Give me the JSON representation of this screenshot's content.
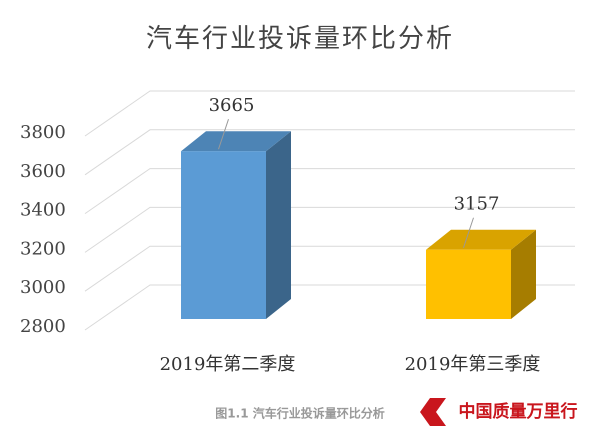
{
  "chart_data": {
    "type": "bar3d",
    "title": "汽车行业投诉量环比分析",
    "categories": [
      "2019年第二季度",
      "2019年第三季度"
    ],
    "values": [
      3665,
      3157
    ],
    "colors": [
      "#5b9bd5",
      "#ffc000"
    ],
    "ylim": [
      2800,
      3800
    ],
    "yticks": [
      2800,
      3000,
      3200,
      3400,
      3600,
      3800
    ],
    "grid": true,
    "caption": "图1.1  汽车行业投诉量环比分析",
    "watermark": "中国质量万里行"
  }
}
